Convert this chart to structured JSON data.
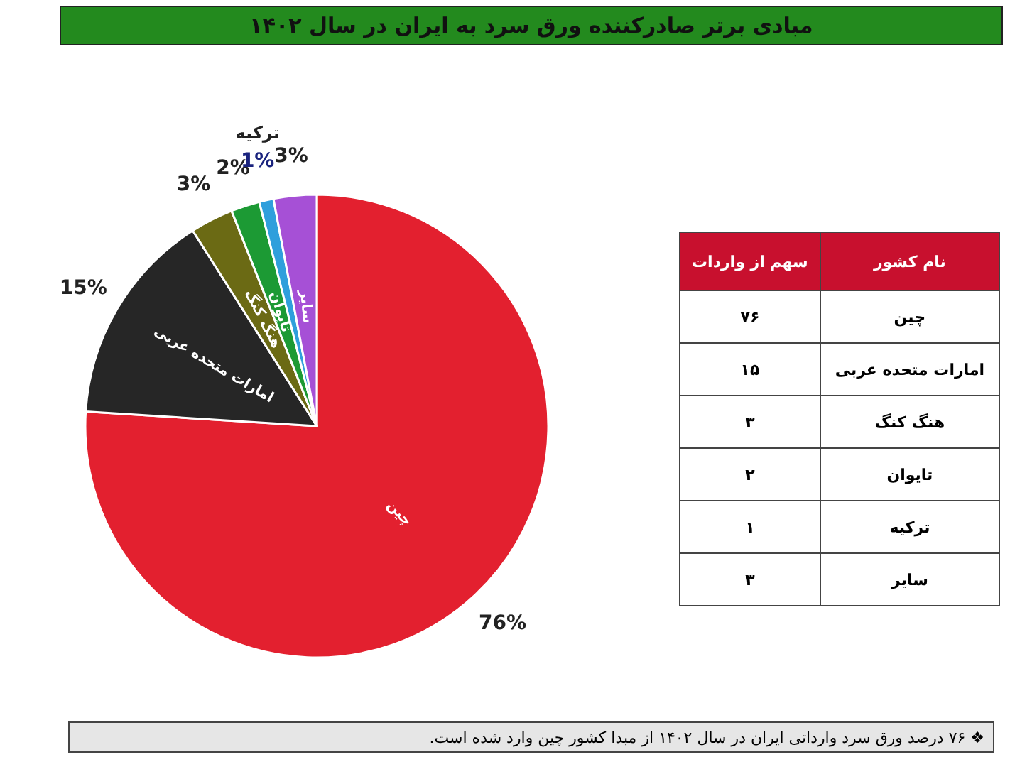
{
  "chart_data": {
    "type": "pie",
    "title": "مبادی برتر صادرکننده ورق سرد به ایران در سال ۱۴۰۲",
    "categories": [
      "چین",
      "امارات متحده عربی",
      "هنگ کنگ",
      "تایوان",
      "ترکیه",
      "سایر"
    ],
    "values": [
      76,
      15,
      3,
      2,
      1,
      3
    ],
    "colors": [
      "#e3202f",
      "#262626",
      "#6b6a14",
      "#1c9a34",
      "#2f9fdc",
      "#a650d6"
    ],
    "value_labels": [
      "76%",
      "15%",
      "3%",
      "2%",
      "1%",
      "3%"
    ],
    "annotations": [
      "نام کشور",
      "سهم از واردات",
      "❖ ۷۶ درصد ورق سرد وارداتی ایران در سال ۱۴۰۲ از مبدا کشور چین وارد شده است.",
      "۷۶",
      "۱۵",
      "۳",
      "۲",
      "۱",
      "۳"
    ],
    "legend": false
  }
}
